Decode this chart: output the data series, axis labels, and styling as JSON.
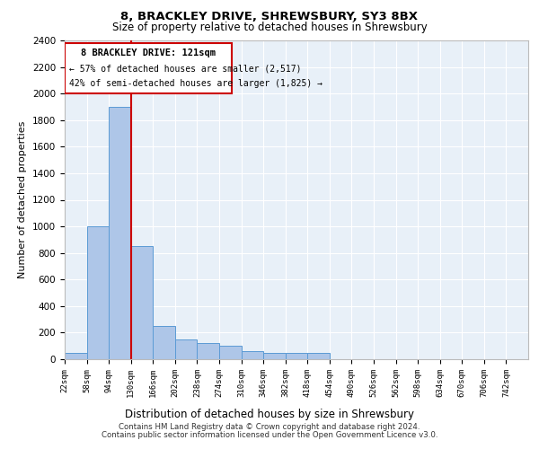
{
  "title1": "8, BRACKLEY DRIVE, SHREWSBURY, SY3 8BX",
  "title2": "Size of property relative to detached houses in Shrewsbury",
  "xlabel": "Distribution of detached houses by size in Shrewsbury",
  "ylabel": "Number of detached properties",
  "bin_labels": [
    "22sqm",
    "58sqm",
    "94sqm",
    "130sqm",
    "166sqm",
    "202sqm",
    "238sqm",
    "274sqm",
    "310sqm",
    "346sqm",
    "382sqm",
    "418sqm",
    "454sqm",
    "490sqm",
    "526sqm",
    "562sqm",
    "598sqm",
    "634sqm",
    "670sqm",
    "706sqm",
    "742sqm"
  ],
  "bin_edges": [
    22,
    58,
    94,
    130,
    166,
    202,
    238,
    274,
    310,
    346,
    382,
    418,
    454,
    490,
    526,
    562,
    598,
    634,
    670,
    706,
    742
  ],
  "bar_heights": [
    50,
    1000,
    1900,
    850,
    250,
    150,
    120,
    100,
    60,
    50,
    50,
    50,
    0,
    0,
    0,
    0,
    0,
    0,
    0,
    0
  ],
  "bar_color": "#aec6e8",
  "bar_edgecolor": "#5b9bd5",
  "vline_x": 130,
  "vline_color": "#cc0000",
  "annotation_title": "8 BRACKLEY DRIVE: 121sqm",
  "annotation_line1": "← 57% of detached houses are smaller (2,517)",
  "annotation_line2": "42% of semi-detached houses are larger (1,825) →",
  "annotation_box_color": "#cc0000",
  "ylim": [
    0,
    2400
  ],
  "yticks": [
    0,
    200,
    400,
    600,
    800,
    1000,
    1200,
    1400,
    1600,
    1800,
    2000,
    2200,
    2400
  ],
  "plot_bg_color": "#e8f0f8",
  "footer1": "Contains HM Land Registry data © Crown copyright and database right 2024.",
  "footer2": "Contains public sector information licensed under the Open Government Licence v3.0."
}
